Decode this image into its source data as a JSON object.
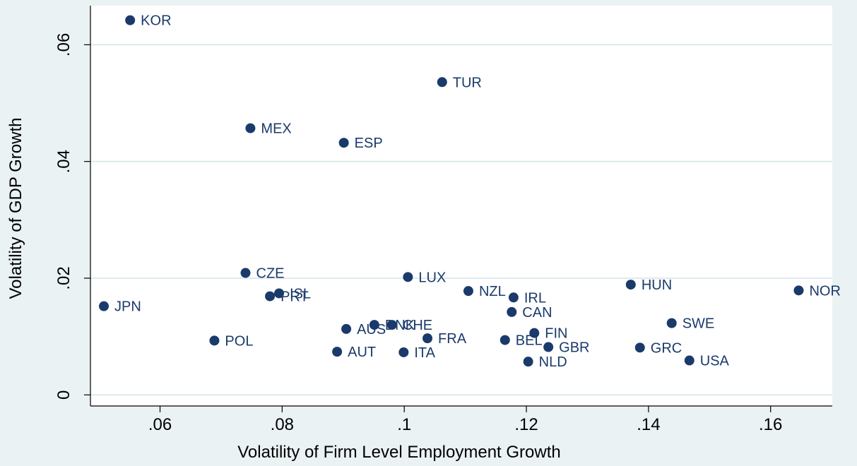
{
  "chart_data": {
    "type": "scatter",
    "x_label": "Volatility of Firm Level Employment Growth",
    "y_label": "Volatility of GDP Growth",
    "color": "#1a3a6b",
    "grid": true,
    "labels": [
      "KOR",
      "TUR",
      "MEX",
      "ESP",
      "CZE",
      "LUX",
      "HUN",
      "NOR",
      "NZL",
      "JPN",
      "PRT",
      "ISL",
      "IRL",
      "CAN",
      "DNK",
      "CHE",
      "SWE",
      "AUS",
      "FIN",
      "POL",
      "FRA",
      "BEL",
      "GRC",
      "GBR",
      "AUT",
      "ITA",
      "NLD",
      "USA"
    ],
    "x": [
      0.0551,
      0.1062,
      0.0748,
      0.0901,
      0.074,
      0.1006,
      0.1371,
      0.1646,
      0.1105,
      0.0508,
      0.078,
      0.0795,
      0.1179,
      0.1176,
      0.0951,
      0.098,
      0.1438,
      0.0905,
      0.1213,
      0.0689,
      0.1038,
      0.1165,
      0.1386,
      0.1236,
      0.089,
      0.0999,
      0.1203,
      0.1467
    ],
    "values": [
      0.0642,
      0.0536,
      0.0457,
      0.0432,
      0.0209,
      0.0202,
      0.0189,
      0.0179,
      0.0178,
      0.0152,
      0.0169,
      0.0174,
      0.0167,
      0.0142,
      0.012,
      0.012,
      0.0123,
      0.0113,
      0.0106,
      0.0093,
      0.0097,
      0.0094,
      0.0081,
      0.0082,
      0.0074,
      0.0073,
      0.0057,
      0.0059
    ],
    "xlim": [
      0.0486,
      0.1701
    ],
    "ylim": [
      -0.0019,
      0.0667
    ],
    "xticks": [
      {
        "value": 0.06,
        "label": ".06"
      },
      {
        "value": 0.08,
        "label": ".08"
      },
      {
        "value": 0.1,
        "label": ".1"
      },
      {
        "value": 0.12,
        "label": ".12"
      },
      {
        "value": 0.14,
        "label": ".14"
      },
      {
        "value": 0.16,
        "label": ".16"
      }
    ],
    "yticks": [
      0,
      {
        "value": 0.02,
        "label": ".02"
      },
      {
        "value": 0.04,
        "label": ".04"
      },
      {
        "value": 0.06,
        "label": ".06"
      }
    ]
  }
}
